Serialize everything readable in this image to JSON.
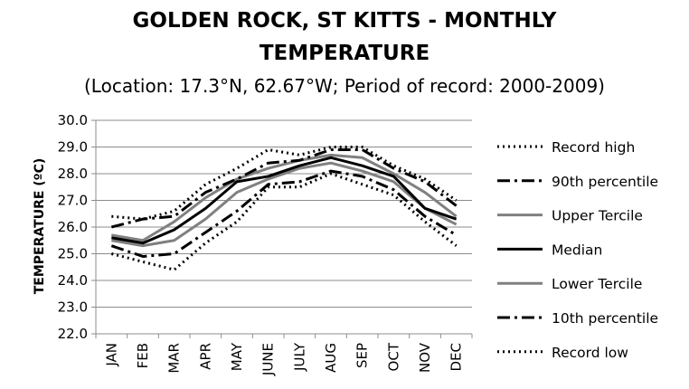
{
  "chart_data": {
    "type": "line",
    "title": "GOLDEN ROCK, ST KITTS - MONTHLY",
    "title_line2": "TEMPERATURE",
    "subtitle": "(Location: 17.3°N, 62.67°W; Period of record: 2000-2009)",
    "ylabel": "TEMPERATURE (ºC)",
    "xlabel": "",
    "ylim": [
      22.0,
      30.0
    ],
    "yticks": [
      "22.0",
      "23.0",
      "24.0",
      "25.0",
      "26.0",
      "27.0",
      "28.0",
      "29.0",
      "30.0"
    ],
    "categories": [
      "JAN",
      "FEB",
      "MAR",
      "APR",
      "MAY",
      "JUNE",
      "JULY",
      "AUG",
      "SEP",
      "OCT",
      "NOV",
      "DEC"
    ],
    "grid": true,
    "legend": "right",
    "series": [
      {
        "name": "Record high",
        "style": "dotted",
        "color": "#000000",
        "values": [
          26.4,
          26.3,
          26.6,
          27.6,
          28.2,
          28.9,
          28.7,
          29.0,
          29.0,
          28.3,
          27.8,
          27.0
        ]
      },
      {
        "name": "90th percentile",
        "style": "dashdot",
        "color": "#000000",
        "values": [
          26.0,
          26.3,
          26.4,
          27.3,
          27.8,
          28.4,
          28.5,
          28.9,
          28.9,
          28.2,
          27.7,
          26.8
        ]
      },
      {
        "name": "Upper Tercile",
        "style": "solid",
        "color": "#808080",
        "values": [
          25.7,
          25.5,
          26.2,
          27.1,
          27.8,
          28.2,
          28.5,
          28.7,
          28.6,
          28.0,
          27.3,
          26.4
        ]
      },
      {
        "name": "Median",
        "style": "solid",
        "color": "#000000",
        "values": [
          25.6,
          25.4,
          25.9,
          26.7,
          27.7,
          27.9,
          28.3,
          28.6,
          28.3,
          27.9,
          26.7,
          26.3
        ]
      },
      {
        "name": "Lower Tercile",
        "style": "solid",
        "color": "#808080",
        "values": [
          25.5,
          25.3,
          25.5,
          26.3,
          27.3,
          27.8,
          28.2,
          28.4,
          28.1,
          27.7,
          26.7,
          26.1
        ]
      },
      {
        "name": "10th percentile",
        "style": "dashdot",
        "color": "#000000",
        "values": [
          25.3,
          24.9,
          25.0,
          25.8,
          26.6,
          27.6,
          27.7,
          28.1,
          27.9,
          27.4,
          26.4,
          25.7
        ]
      },
      {
        "name": "Record low",
        "style": "dotted",
        "color": "#000000",
        "values": [
          25.0,
          24.7,
          24.4,
          25.4,
          26.2,
          27.5,
          27.5,
          28.0,
          27.6,
          27.2,
          26.2,
          25.3
        ]
      }
    ]
  }
}
